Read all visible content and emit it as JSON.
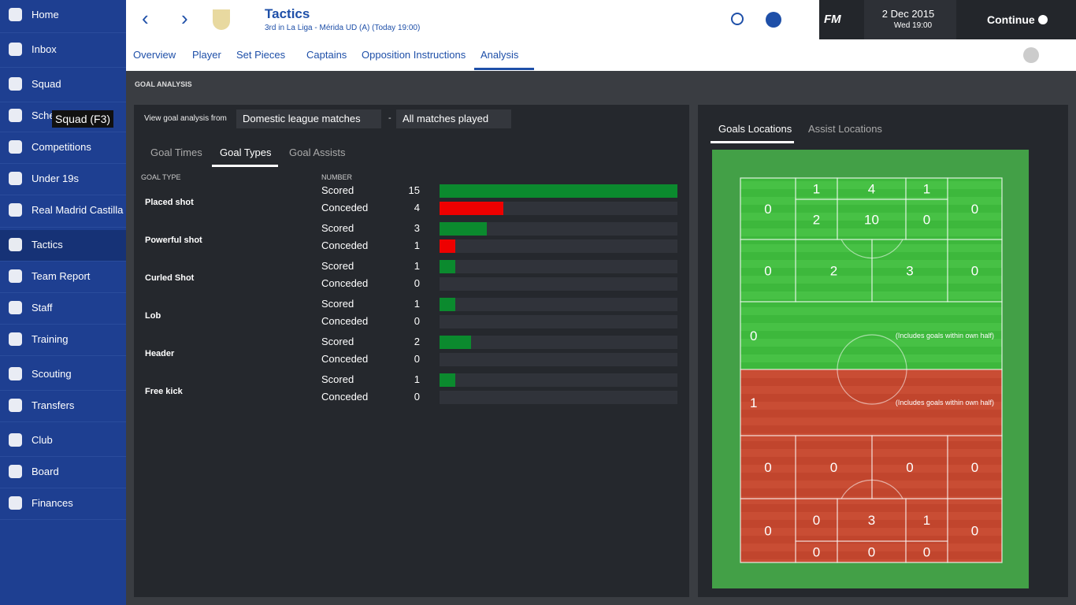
{
  "sidebar": {
    "items": [
      "Home",
      "Inbox",
      "Squad",
      "Schedule",
      "Competitions",
      "Under 19s",
      "Real Madrid Castilla",
      "Tactics",
      "Team Report",
      "Staff",
      "Training",
      "Scouting",
      "Transfers",
      "Club",
      "Board",
      "Finances"
    ],
    "tooltip": "Squad (F3)"
  },
  "header": {
    "title": "Tactics",
    "subtitle": "3rd in La Liga - Mérida UD (A) (Today 19:00)",
    "logo": "FM",
    "date": "2 Dec 2015",
    "time": "Wed 19:00",
    "continue": "Continue"
  },
  "tabs": [
    "Overview",
    "Player",
    "Set Pieces",
    "Captains",
    "Opposition Instructions",
    "Analysis"
  ],
  "analysis": {
    "section_title": "GOAL ANALYSIS",
    "filter_label": "View goal analysis from",
    "filter_competition": "Domestic league matches",
    "filter_separator": "-",
    "filter_matches": "All matches played",
    "subtabs": [
      "Goal Times",
      "Goal Types",
      "Goal Assists"
    ],
    "columns": [
      "GOAL TYPE",
      "NUMBER"
    ],
    "row_labels": [
      "Scored",
      "Conceded"
    ],
    "rows": [
      {
        "type": "Placed shot",
        "scored": 15,
        "conceded": 4
      },
      {
        "type": "Powerful shot",
        "scored": 3,
        "conceded": 1
      },
      {
        "type": "Curled Shot",
        "scored": 1,
        "conceded": 0
      },
      {
        "type": "Lob",
        "scored": 1,
        "conceded": 0
      },
      {
        "type": "Header",
        "scored": 2,
        "conceded": 0
      },
      {
        "type": "Free kick",
        "scored": 1,
        "conceded": 0
      }
    ]
  },
  "locations": {
    "tabs": [
      "Goals Locations",
      "Assist Locations"
    ],
    "note": "(Includes goals within own half)",
    "scored_zones": [
      0,
      1,
      4,
      1,
      0,
      2,
      10,
      0,
      0,
      2,
      3,
      0,
      0
    ],
    "conceded_zones": [
      1,
      0,
      0,
      0,
      0,
      0,
      0,
      3,
      1,
      0,
      0,
      0,
      0
    ]
  }
}
